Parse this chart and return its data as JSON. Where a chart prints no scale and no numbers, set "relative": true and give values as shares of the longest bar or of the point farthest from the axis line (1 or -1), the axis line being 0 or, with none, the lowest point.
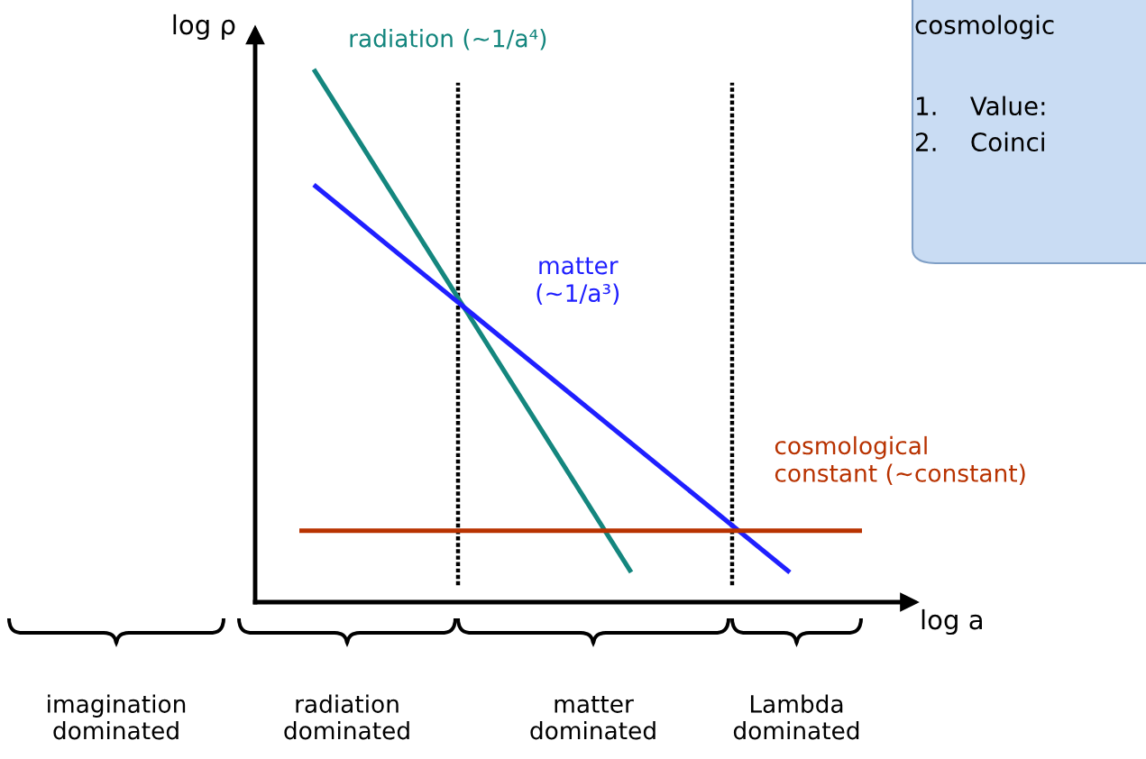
{
  "chart_data": {
    "type": "line",
    "relative": true,
    "xlabel": "log a",
    "ylabel": "log ρ",
    "legend": false,
    "marker": "none",
    "line_style": "solid",
    "categories": [
      null,
      null,
      null,
      null,
      null,
      null,
      null,
      null,
      null,
      null,
      null,
      null,
      null,
      null,
      null,
      null,
      null,
      null,
      null,
      null,
      null,
      null,
      null,
      null,
      null,
      null,
      null,
      null,
      null,
      null,
      null,
      null,
      null,
      null,
      null,
      null,
      null,
      null,
      null,
      null
    ],
    "series": [
      {
        "name": "radiation (~1/a⁴)",
        "color": "#14867e",
        "values": [
          null,
          1,
          null,
          null,
          null,
          null,
          null,
          null,
          null,
          null,
          null,
          null,
          null,
          null,
          null,
          null,
          null,
          null,
          null,
          null,
          null,
          null,
          null,
          0.056,
          null,
          null,
          null,
          null,
          null,
          null,
          null,
          null,
          null,
          null,
          null,
          null,
          null,
          null,
          null,
          null
        ]
      },
      {
        "name": "matter\n(~1/a³)",
        "color": "#1f1fff",
        "values": [
          null,
          0.783,
          null,
          null,
          null,
          null,
          null,
          null,
          null,
          null,
          null,
          null,
          null,
          null,
          null,
          null,
          null,
          null,
          null,
          null,
          null,
          null,
          null,
          null,
          null,
          null,
          null,
          null,
          null,
          null,
          null,
          null,
          null,
          null,
          0.056,
          null,
          null,
          null,
          null,
          null
        ]
      },
      {
        "name": "cosmological\nconstant (~constant)",
        "color": "#b83200",
        "values": [
          0.134,
          null,
          null,
          null,
          null,
          null,
          null,
          null,
          null,
          null,
          null,
          null,
          null,
          null,
          null,
          null,
          null,
          null,
          null,
          null,
          null,
          null,
          null,
          null,
          null,
          null,
          null,
          null,
          null,
          null,
          null,
          null,
          null,
          null,
          null,
          null,
          null,
          null,
          null,
          0.134
        ]
      }
    ],
    "annotations": [
      "imagination\ndominated",
      "radiation\ndominated",
      "matter\ndominated",
      "Lambda\ndominated",
      "cosmologic",
      "1.    Value:",
      "2.    Coinci"
    ]
  }
}
